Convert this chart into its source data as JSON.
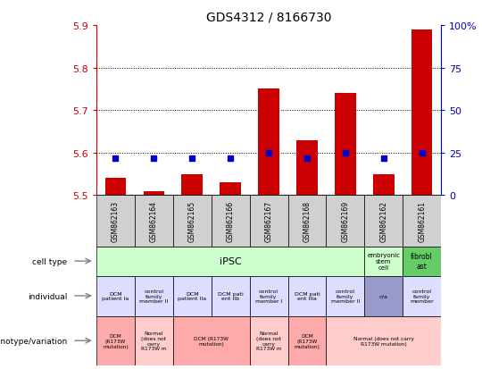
{
  "title": "GDS4312 / 8166730",
  "samples": [
    "GSM862163",
    "GSM862164",
    "GSM862165",
    "GSM862166",
    "GSM862167",
    "GSM862168",
    "GSM862169",
    "GSM862162",
    "GSM862161"
  ],
  "bar_values": [
    5.54,
    5.51,
    5.55,
    5.53,
    5.75,
    5.63,
    5.74,
    5.55,
    5.89
  ],
  "percentile_values": [
    22,
    22,
    22,
    22,
    25,
    22,
    25,
    22,
    25
  ],
  "ymin": 5.5,
  "ymax": 5.9,
  "yticks": [
    5.5,
    5.6,
    5.7,
    5.8,
    5.9
  ],
  "right_yticks": [
    0,
    25,
    50,
    75,
    100
  ],
  "bar_color": "#cc0000",
  "dot_color": "#0000cc",
  "bg_color": "#ffffff",
  "title_color": "#000000",
  "left_axis_color": "#cc0000",
  "right_axis_color": "#0000cc",
  "indiv_texts": [
    "DCM\npatient Ia",
    "control\nfamily\nmember II",
    "DCM\npatient IIa",
    "DCM pati\nent IIb",
    "control\nfamily\nmember I",
    "DCM pati\nent IIIa",
    "control\nfamily\nmember II",
    "n/a",
    "control\nfamily\nmember"
  ],
  "indiv_colors": [
    "#ddddff",
    "#ddddff",
    "#ddddff",
    "#ddddff",
    "#ddddff",
    "#ddddff",
    "#ddddff",
    "#9999cc",
    "#ddddff"
  ],
  "geno_merges": [
    [
      0,
      1,
      "#ffaaaa",
      "DCM\n(R173W\nmutation)"
    ],
    [
      1,
      1,
      "#ffcccc",
      "Normal\n(does not\ncarry\nR173W m"
    ],
    [
      2,
      2,
      "#ffaaaa",
      "DCM (R173W\nmutation)"
    ],
    [
      4,
      1,
      "#ffcccc",
      "Normal\n(does not\ncarry\nR173W m"
    ],
    [
      5,
      1,
      "#ffaaaa",
      "DCM\n(R173W\nmutation)"
    ],
    [
      6,
      3,
      "#ffcccc",
      "Normal (does not carry\nR173W mutation)"
    ]
  ]
}
